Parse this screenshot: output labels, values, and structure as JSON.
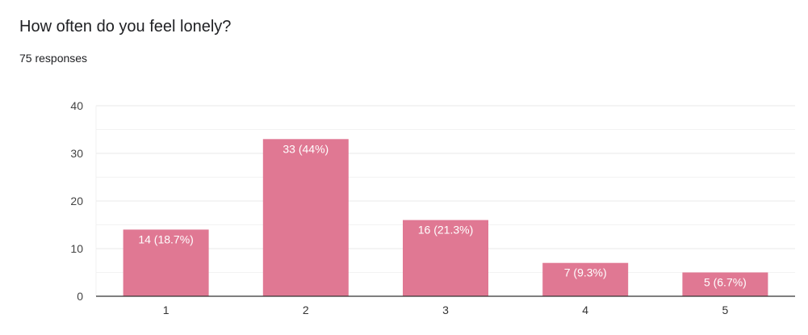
{
  "header": {
    "title": "How often do you feel lonely?",
    "responses": "75 responses"
  },
  "chart_data": {
    "type": "bar",
    "title": "How often do you feel lonely?",
    "categories": [
      "1",
      "2",
      "3",
      "4",
      "5"
    ],
    "values": [
      14,
      33,
      16,
      7,
      5
    ],
    "data_labels": [
      "14 (18.7%)",
      "33 (44%)",
      "16 (21.3%)",
      "7 (9.3%)",
      "5 (6.7%)"
    ],
    "yticks": [
      "0",
      "10",
      "20",
      "30",
      "40"
    ],
    "ylim": [
      0,
      40
    ],
    "grid": true,
    "xlabel": "",
    "ylabel": "",
    "bar_color": "#e07893"
  }
}
